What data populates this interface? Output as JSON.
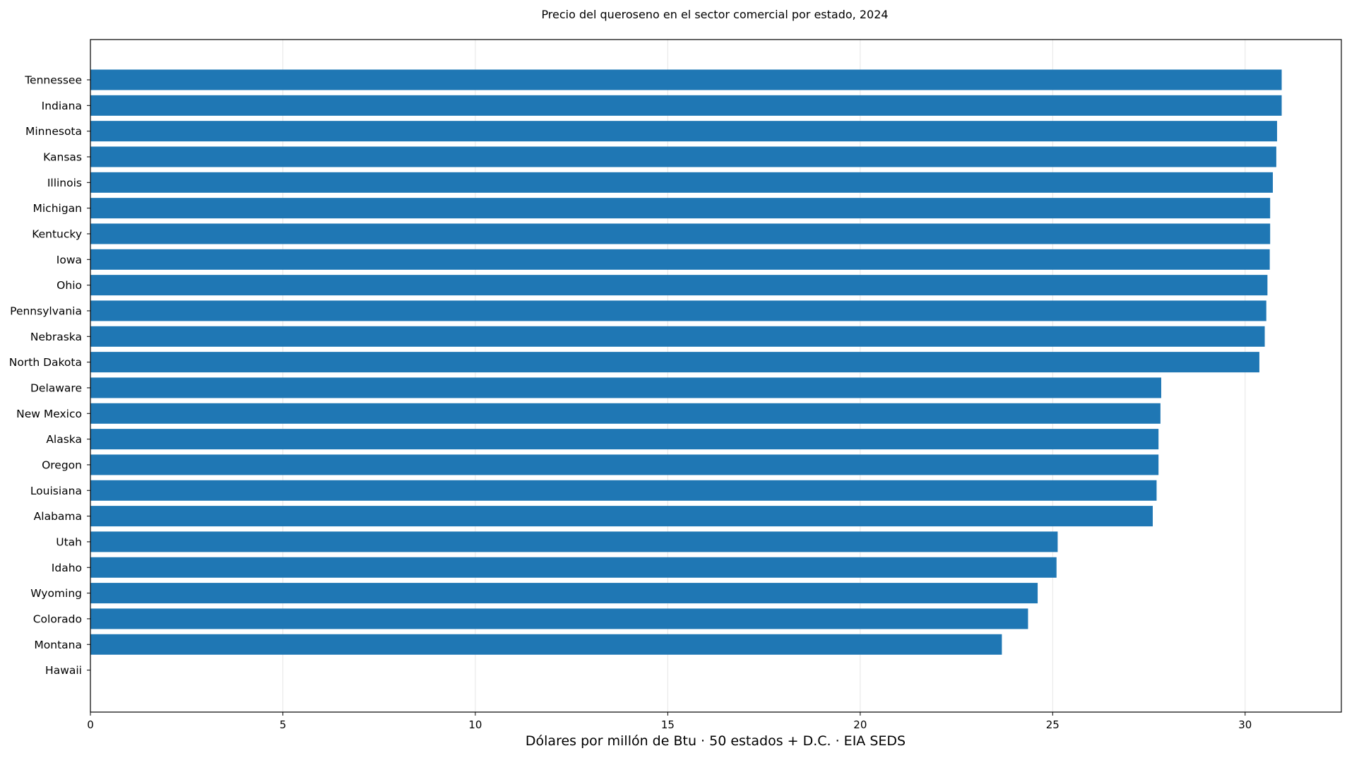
{
  "chart_data": {
    "type": "bar",
    "orientation": "horizontal",
    "title": "Precio del queroseno en el sector comercial por estado, 2024",
    "xlabel": "Dólares por millón de Btu · 50 estados + D.C. · EIA SEDS",
    "ylabel": "",
    "xlim": [
      0,
      32.5
    ],
    "xticks": [
      0,
      5,
      10,
      15,
      20,
      25,
      30
    ],
    "grid": "vertical",
    "bar_color": "#1f77b4",
    "categories": [
      "Tennessee",
      "Indiana",
      "Minnesota",
      "Kansas",
      "Illinois",
      "Michigan",
      "Kentucky",
      "Iowa",
      "Ohio",
      "Pennsylvania",
      "Nebraska",
      "North Dakota",
      "Delaware",
      "New Mexico",
      "Alaska",
      "Oregon",
      "Louisiana",
      "Alabama",
      "Utah",
      "Idaho",
      "Wyoming",
      "Colorado",
      "Montana",
      "Hawaii"
    ],
    "values": [
      30.95,
      30.95,
      30.83,
      30.81,
      30.72,
      30.65,
      30.65,
      30.64,
      30.58,
      30.55,
      30.51,
      30.37,
      27.82,
      27.8,
      27.75,
      27.75,
      27.7,
      27.6,
      25.13,
      25.1,
      24.61,
      24.36,
      23.68,
      null
    ]
  }
}
